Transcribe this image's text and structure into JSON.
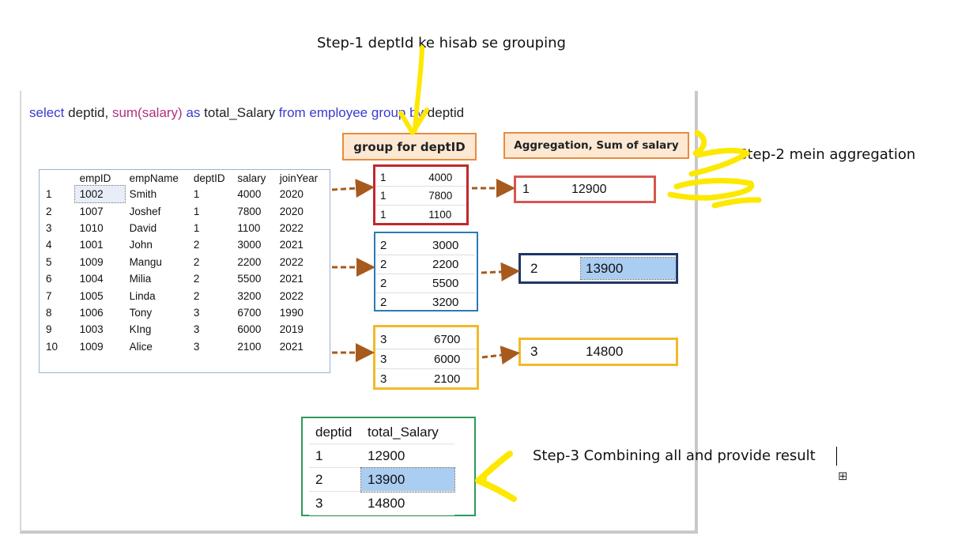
{
  "notes": {
    "step1": "Step-1 deptId ke hisab se grouping",
    "step2": "Step-2 mein aggregation",
    "step3": "Step-3 Combining all and provide result"
  },
  "sql": {
    "select": "select",
    "deptid": "deptid,",
    "sum": "sum(salary)",
    "as": "as",
    "alias": "total_Salary",
    "from": "from",
    "table": "employee",
    "group": "group",
    "by": "by",
    "deptid2": "deptid"
  },
  "labels": {
    "group_box": "group for deptID",
    "agg_box": "Aggregation, Sum of salary"
  },
  "source_table": {
    "headers": [
      "",
      "empID",
      "empName",
      "deptID",
      "salary",
      "joinYear"
    ],
    "rows": [
      [
        "1",
        "1002",
        "Smith",
        "1",
        "4000",
        "2020"
      ],
      [
        "2",
        "1007",
        "Joshef",
        "1",
        "7800",
        "2020"
      ],
      [
        "3",
        "1010",
        "David",
        "1",
        "1100",
        "2022"
      ],
      [
        "4",
        "1001",
        "John",
        "2",
        "3000",
        "2021"
      ],
      [
        "5",
        "1009",
        "Mangu",
        "2",
        "2200",
        "2022"
      ],
      [
        "6",
        "1004",
        "Milia",
        "2",
        "5500",
        "2021"
      ],
      [
        "7",
        "1005",
        "Linda",
        "2",
        "3200",
        "2022"
      ],
      [
        "8",
        "1006",
        "Tony",
        "3",
        "6700",
        "1990"
      ],
      [
        "9",
        "1003",
        "KIng",
        "3",
        "6000",
        "2019"
      ],
      [
        "10",
        "1009",
        "Alice",
        "3",
        "2100",
        "2021"
      ]
    ]
  },
  "groups": [
    {
      "rows": [
        [
          "1",
          "4000"
        ],
        [
          "1",
          "7800"
        ],
        [
          "1",
          "1100"
        ]
      ],
      "color": "#c0282d"
    },
    {
      "rows": [
        [
          "2",
          "3000"
        ],
        [
          "2",
          "2200"
        ],
        [
          "2",
          "5500"
        ],
        [
          "2",
          "3200"
        ]
      ],
      "color": "#2a7ab8"
    },
    {
      "rows": [
        [
          "3",
          "6700"
        ],
        [
          "3",
          "6000"
        ],
        [
          "3",
          "2100"
        ]
      ],
      "color": "#f2b92a"
    }
  ],
  "aggregates": [
    {
      "dept": "1",
      "total": "12900",
      "color": "#d6574f"
    },
    {
      "dept": "2",
      "total": "13900",
      "color": "#1f3764"
    },
    {
      "dept": "3",
      "total": "14800",
      "color": "#f2b92a"
    }
  ],
  "result": {
    "headers": [
      "deptid",
      "total_Salary"
    ],
    "rows": [
      [
        "1",
        "12900"
      ],
      [
        "2",
        "13900"
      ],
      [
        "3",
        "14800"
      ]
    ]
  },
  "colors": {
    "arrow": "#a65a1e",
    "highlighter": "#fde800",
    "highlight_cell": "#aacdf2"
  },
  "icons": {
    "table_move": "move-handle-icon"
  }
}
